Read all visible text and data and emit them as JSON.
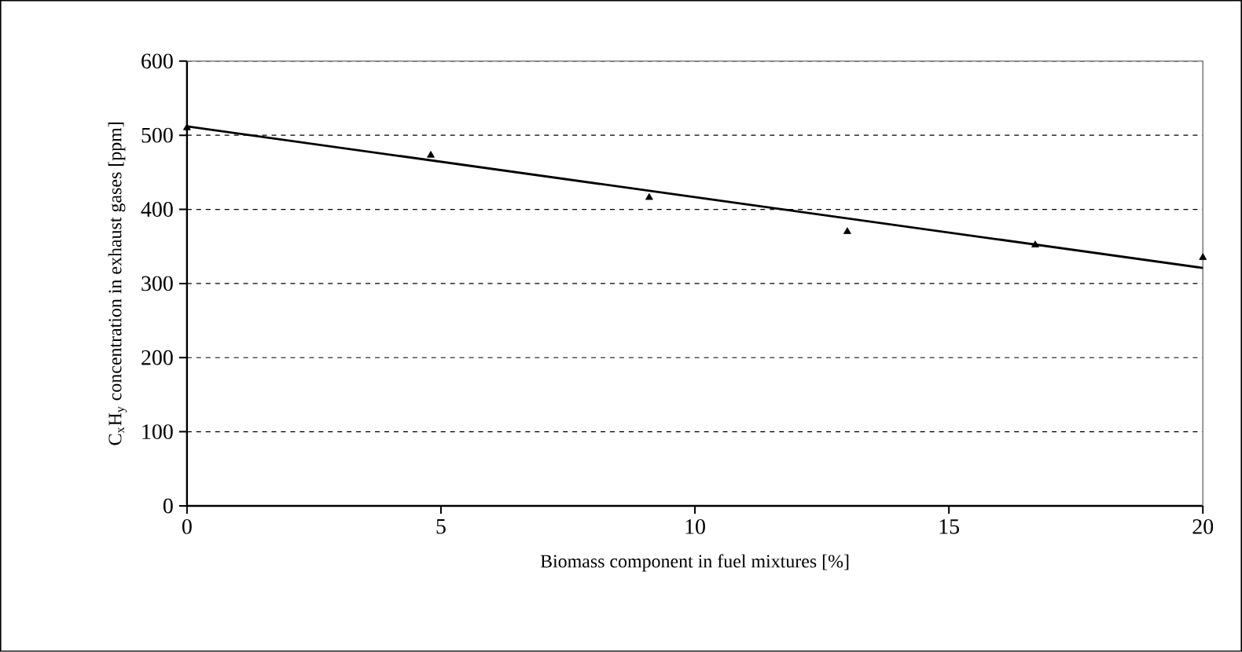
{
  "chart_data": {
    "type": "scatter",
    "xlabel": "Biomass component in fuel mixtures [%]",
    "ylabel": "C$_{x}$H$_{y}$ concentration in exhaust gases [ppm]",
    "xlim": [
      0,
      20
    ],
    "xticks": [
      0,
      5,
      10,
      15,
      20
    ],
    "ylim": [
      0,
      600
    ],
    "yticks": [
      0,
      100,
      200,
      300,
      400,
      500,
      600
    ],
    "grid": "y",
    "series": [
      {
        "color": "#000000",
        "marker": "triangle",
        "x": [
          0,
          4.8,
          9.1,
          13.0,
          16.7,
          20
        ],
        "values": [
          510,
          473,
          416,
          370,
          352,
          335
        ]
      },
      {
        "type": "line",
        "color": "#000000",
        "marker": "none",
        "line_style": "solid",
        "x": [
          0,
          20
        ],
        "values": [
          512,
          321
        ]
      }
    ]
  }
}
